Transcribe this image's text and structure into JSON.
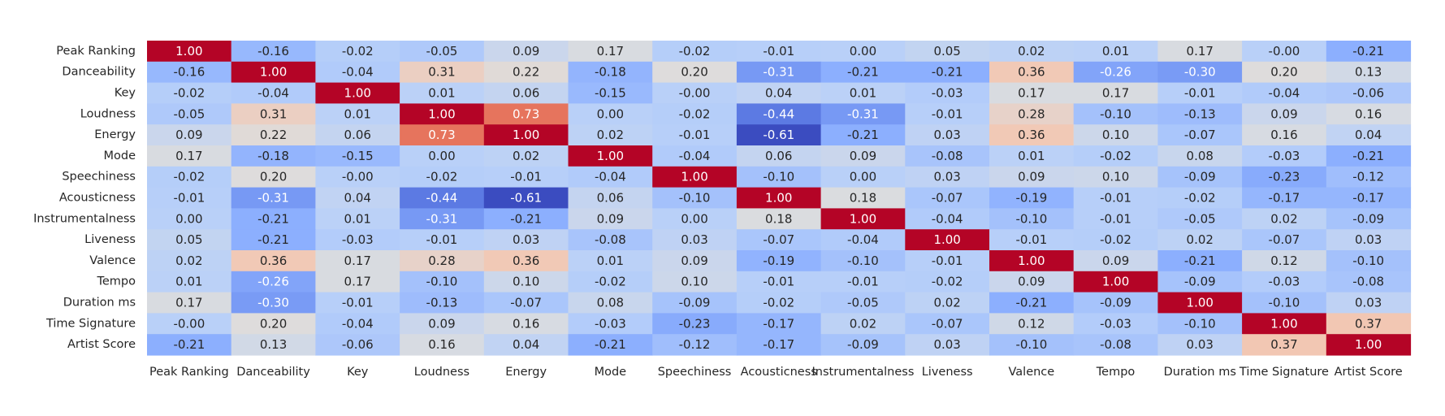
{
  "chart_data": {
    "type": "heatmap",
    "title": "",
    "xlabel": "",
    "ylabel": "",
    "colormap": "coolwarm",
    "value_range": [
      -0.61,
      1.0
    ],
    "value_format": "0.00",
    "colorbar": false,
    "grid": false,
    "labels": [
      "Peak Ranking",
      "Danceability",
      "Key",
      "Loudness",
      "Energy",
      "Mode",
      "Speechiness",
      "Acousticness",
      "Instrumentalness",
      "Liveness",
      "Valence",
      "Tempo",
      "Duration ms",
      "Time Signature",
      "Artist Score"
    ],
    "values": [
      [
        1.0,
        -0.16,
        -0.02,
        -0.05,
        0.09,
        0.17,
        -0.02,
        -0.01,
        0.0,
        0.05,
        0.02,
        0.01,
        0.17,
        -0.0,
        -0.21
      ],
      [
        -0.16,
        1.0,
        -0.04,
        0.31,
        0.22,
        -0.18,
        0.2,
        -0.31,
        -0.21,
        -0.21,
        0.36,
        -0.26,
        -0.3,
        0.2,
        0.13
      ],
      [
        -0.02,
        -0.04,
        1.0,
        0.01,
        0.06,
        -0.15,
        -0.0,
        0.04,
        0.01,
        -0.03,
        0.17,
        0.17,
        -0.01,
        -0.04,
        -0.06
      ],
      [
        -0.05,
        0.31,
        0.01,
        1.0,
        0.73,
        0.0,
        -0.02,
        -0.44,
        -0.31,
        -0.01,
        0.28,
        -0.1,
        -0.13,
        0.09,
        0.16
      ],
      [
        0.09,
        0.22,
        0.06,
        0.73,
        1.0,
        0.02,
        -0.01,
        -0.61,
        -0.21,
        0.03,
        0.36,
        0.1,
        -0.07,
        0.16,
        0.04
      ],
      [
        0.17,
        -0.18,
        -0.15,
        0.0,
        0.02,
        1.0,
        -0.04,
        0.06,
        0.09,
        -0.08,
        0.01,
        -0.02,
        0.08,
        -0.03,
        -0.21
      ],
      [
        -0.02,
        0.2,
        -0.0,
        -0.02,
        -0.01,
        -0.04,
        1.0,
        -0.1,
        0.0,
        0.03,
        0.09,
        0.1,
        -0.09,
        -0.23,
        -0.12
      ],
      [
        -0.01,
        -0.31,
        0.04,
        -0.44,
        -0.61,
        0.06,
        -0.1,
        1.0,
        0.18,
        -0.07,
        -0.19,
        -0.01,
        -0.02,
        -0.17,
        -0.17
      ],
      [
        0.0,
        -0.21,
        0.01,
        -0.31,
        -0.21,
        0.09,
        0.0,
        0.18,
        1.0,
        -0.04,
        -0.1,
        -0.01,
        -0.05,
        0.02,
        -0.09
      ],
      [
        0.05,
        -0.21,
        -0.03,
        -0.01,
        0.03,
        -0.08,
        0.03,
        -0.07,
        -0.04,
        1.0,
        -0.01,
        -0.02,
        0.02,
        -0.07,
        0.03
      ],
      [
        0.02,
        0.36,
        0.17,
        0.28,
        0.36,
        0.01,
        0.09,
        -0.19,
        -0.1,
        -0.01,
        1.0,
        0.09,
        -0.21,
        0.12,
        -0.1
      ],
      [
        0.01,
        -0.26,
        0.17,
        -0.1,
        0.1,
        -0.02,
        0.1,
        -0.01,
        -0.01,
        -0.02,
        0.09,
        1.0,
        -0.09,
        -0.03,
        -0.08
      ],
      [
        0.17,
        -0.3,
        -0.01,
        -0.13,
        -0.07,
        0.08,
        -0.09,
        -0.02,
        -0.05,
        0.02,
        -0.21,
        -0.09,
        1.0,
        -0.1,
        0.03
      ],
      [
        -0.0,
        0.2,
        -0.04,
        0.09,
        0.16,
        -0.03,
        -0.23,
        -0.17,
        0.02,
        -0.07,
        0.12,
        -0.03,
        -0.1,
        1.0,
        0.37
      ],
      [
        -0.21,
        0.13,
        -0.06,
        0.16,
        0.04,
        -0.21,
        -0.12,
        -0.17,
        -0.09,
        0.03,
        -0.1,
        -0.08,
        0.03,
        0.37,
        1.0
      ]
    ]
  }
}
